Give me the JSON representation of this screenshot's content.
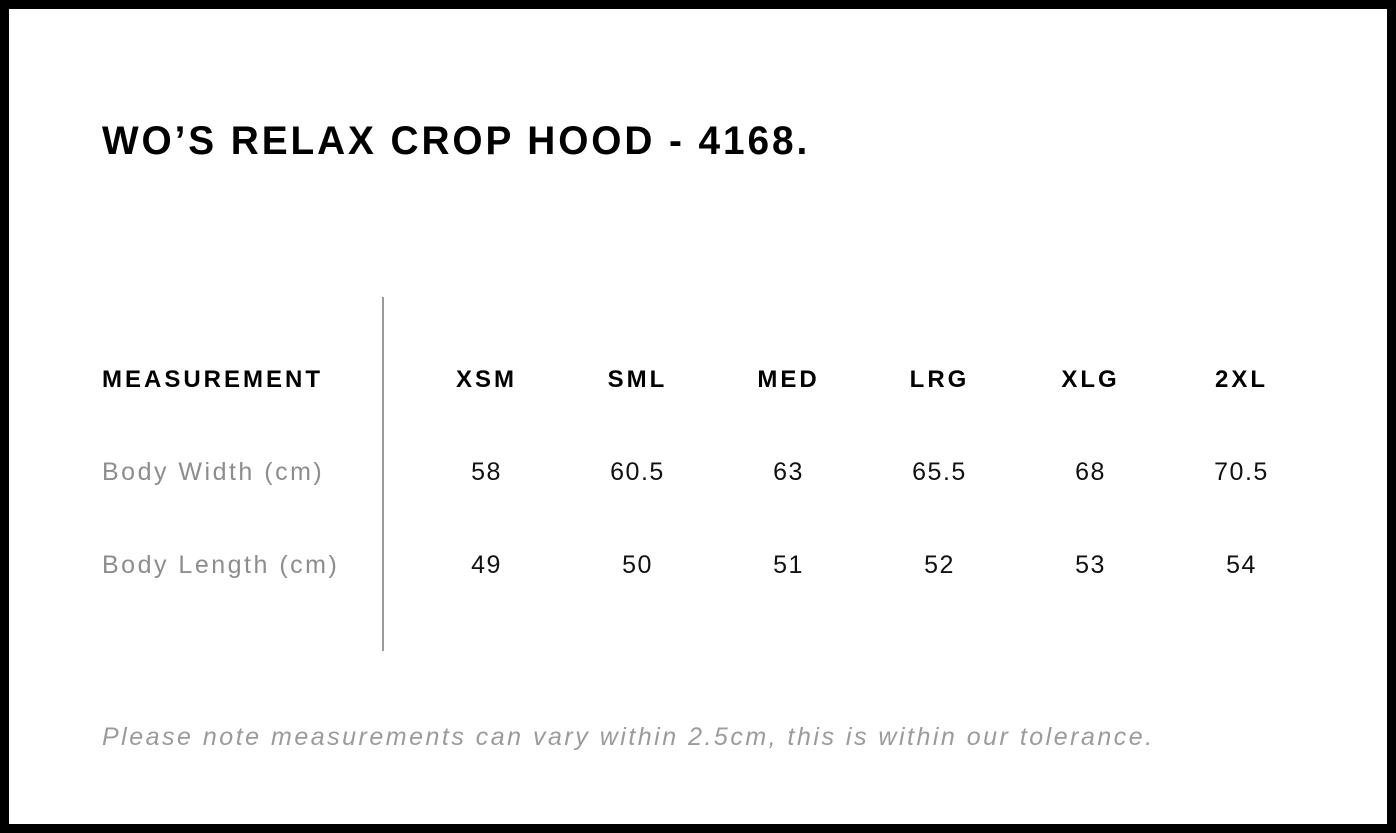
{
  "page": {
    "title": "WO’S RELAX CROP HOOD - 4168.",
    "note": "Please note measurements can vary within 2.5cm, this is within our tolerance."
  },
  "size_chart": {
    "measurement_header": "MEASUREMENT",
    "sizes": [
      "XSM",
      "SML",
      "MED",
      "LRG",
      "XLG",
      "2XL"
    ],
    "rows": [
      {
        "label": "Body Width (cm)",
        "values": [
          "58",
          "60.5",
          "63",
          "65.5",
          "68",
          "70.5"
        ]
      },
      {
        "label": "Body Length (cm)",
        "values": [
          "49",
          "50",
          "51",
          "52",
          "53",
          "54"
        ]
      }
    ]
  },
  "chart_data": {
    "type": "table",
    "title": "WO’S RELAX CROP HOOD - 4168.",
    "columns": [
      "MEASUREMENT",
      "XSM",
      "SML",
      "MED",
      "LRG",
      "XLG",
      "2XL"
    ],
    "rows": [
      [
        "Body Width (cm)",
        58,
        60.5,
        63,
        65.5,
        68,
        70.5
      ],
      [
        "Body Length (cm)",
        49,
        50,
        51,
        52,
        53,
        54
      ]
    ],
    "note": "Please note measurements can vary within 2.5cm, this is within our tolerance.",
    "layout": {
      "divider_between_label_and_sizes": true,
      "grid": "off"
    }
  },
  "colors": {
    "page_border": "#000000",
    "heading_text": "#000000",
    "value_text": "#111111",
    "row_label_text": "#8d8d8d",
    "note_text": "#9b9b9b",
    "divider": "#9a9a9a",
    "background": "#ffffff"
  }
}
